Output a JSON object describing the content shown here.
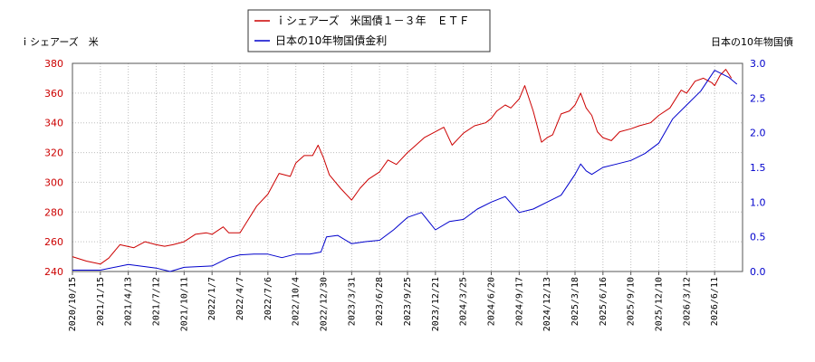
{
  "chart_data": {
    "type": "line",
    "y_left_label": "ｉシェアーズ　米",
    "y_right_label": "日本の10年物国債",
    "y_left_ticks": [
      "240",
      "260",
      "280",
      "300",
      "320",
      "340",
      "360",
      "380"
    ],
    "y_right_ticks": [
      "0.0",
      "0.5",
      "1.0",
      "1.5",
      "2.0",
      "2.5",
      "3.0"
    ],
    "ylim_left": [
      240,
      380
    ],
    "ylim_right": [
      0.0,
      3.0
    ],
    "grid": true,
    "legend_position": "top-center",
    "x_tick_labels": [
      "2020/10/15",
      "2021/1/15",
      "2021/4/13",
      "2021/7/12",
      "2021/10/11",
      "2022/1/7",
      "2022/4/7",
      "2022/7/6",
      "2022/10/4",
      "2022/12/30",
      "2023/3/31",
      "2023/6/28",
      "2023/9/25",
      "2023/12/21",
      "2024/3/25",
      "2024/6/20",
      "2024/9/17",
      "2024/12/13",
      "2025/3/18",
      "2025/6/16",
      "2025/9/10",
      "2025/12/10",
      "2026/3/12",
      "2026/6/11"
    ],
    "series": [
      {
        "name": "ｉシェアーズ　米国債１－３年　ＥＴＦ",
        "color": "#cc0000",
        "axis": "left",
        "x": [
          0,
          0.5,
          1,
          1.3,
          1.7,
          2.2,
          2.6,
          3,
          3.3,
          3.6,
          4,
          4.4,
          4.8,
          5,
          5.4,
          5.6,
          6,
          6.2,
          6.6,
          7,
          7.4,
          7.8,
          8,
          8.3,
          8.6,
          8.8,
          9,
          9.2,
          9.6,
          10,
          10.3,
          10.6,
          11,
          11.3,
          11.6,
          12,
          12.3,
          12.6,
          13,
          13.3,
          13.6,
          14,
          14.4,
          14.8,
          15,
          15.2,
          15.5,
          15.7,
          16,
          16.2,
          16.5,
          16.8,
          17,
          17.2,
          17.5,
          17.8,
          18,
          18.2,
          18.4,
          18.6,
          18.8,
          19,
          19.3,
          19.6,
          20,
          20.3,
          20.7,
          21,
          21.4,
          21.8,
          22,
          22.3,
          22.6,
          22.9,
          23,
          23.2,
          23.4,
          23.6
        ],
        "values": [
          250,
          247,
          245,
          249,
          258,
          256,
          260,
          258,
          257,
          258,
          260,
          265,
          266,
          265,
          270,
          266,
          266,
          272,
          284,
          292,
          306,
          304,
          313,
          318,
          318,
          325,
          316,
          305,
          296,
          288,
          296,
          302,
          307,
          315,
          312,
          320,
          325,
          330,
          334,
          337,
          325,
          333,
          338,
          340,
          343,
          348,
          352,
          350,
          356,
          365,
          348,
          327,
          330,
          332,
          346,
          348,
          352,
          360,
          350,
          345,
          334,
          330,
          328,
          334,
          336,
          338,
          340,
          345,
          350,
          362,
          360,
          368,
          370,
          367,
          365,
          372,
          376,
          370
        ]
      },
      {
        "name": "日本の10年物国債金利",
        "color": "#0000cc",
        "axis": "right",
        "x": [
          0,
          1,
          2,
          3,
          3.5,
          4,
          5,
          5.6,
          6,
          6.5,
          7,
          7.5,
          8,
          8.5,
          8.9,
          9.1,
          9.5,
          10,
          10.5,
          11,
          11.5,
          12,
          12.5,
          12.8,
          13,
          13.5,
          14,
          14.5,
          15,
          15.5,
          16,
          16.5,
          17,
          17.5,
          18,
          18.2,
          18.4,
          18.6,
          19,
          19.5,
          20,
          20.5,
          21,
          21.5,
          22,
          22.5,
          23,
          23.5,
          23.8
        ],
        "values": [
          0.02,
          0.02,
          0.1,
          0.05,
          0.0,
          0.06,
          0.08,
          0.2,
          0.24,
          0.25,
          0.25,
          0.2,
          0.25,
          0.25,
          0.28,
          0.5,
          0.52,
          0.4,
          0.43,
          0.45,
          0.6,
          0.78,
          0.85,
          0.7,
          0.6,
          0.72,
          0.75,
          0.9,
          1.0,
          1.08,
          0.85,
          0.9,
          1.0,
          1.1,
          1.4,
          1.55,
          1.45,
          1.4,
          1.5,
          1.55,
          1.6,
          1.7,
          1.85,
          2.2,
          2.4,
          2.6,
          2.9,
          2.8,
          2.7
        ]
      }
    ]
  }
}
